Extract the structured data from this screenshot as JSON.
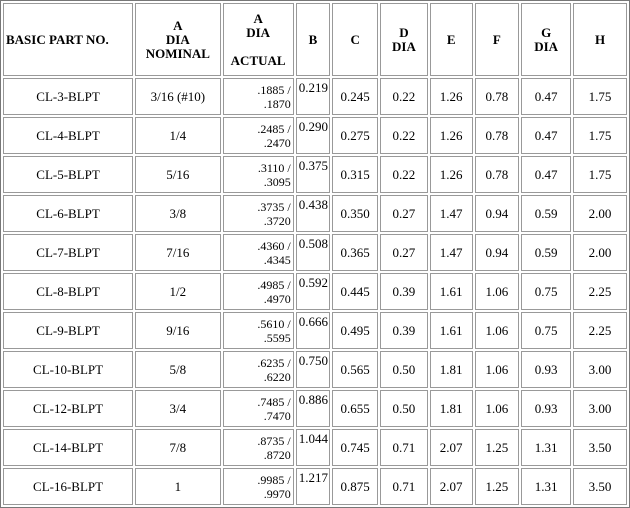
{
  "table": {
    "header": [
      [
        "BASIC PART NO."
      ],
      [
        "A",
        "DIA",
        "NOMINAL"
      ],
      [
        "A",
        "DIA",
        "ACTUAL"
      ],
      [
        "B"
      ],
      [
        "C"
      ],
      [
        "D",
        "DIA"
      ],
      [
        "E"
      ],
      [
        "F"
      ],
      [
        "G",
        "DIA"
      ],
      [
        "H"
      ]
    ],
    "rows": [
      [
        "CL-3-BLPT",
        "3/16 (#10)",
        [
          ".1885 /",
          ".1870"
        ],
        "0.219",
        "0.245",
        "0.22",
        "1.26",
        "0.78",
        "0.47",
        "1.75"
      ],
      [
        "CL-4-BLPT",
        "1/4",
        [
          ".2485 /",
          ".2470"
        ],
        "0.290",
        "0.275",
        "0.22",
        "1.26",
        "0.78",
        "0.47",
        "1.75"
      ],
      [
        "CL-5-BLPT",
        "5/16",
        [
          ".3110 /",
          ".3095"
        ],
        "0.375",
        "0.315",
        "0.22",
        "1.26",
        "0.78",
        "0.47",
        "1.75"
      ],
      [
        "CL-6-BLPT",
        "3/8",
        [
          ".3735 /",
          ".3720"
        ],
        "0.438",
        "0.350",
        "0.27",
        "1.47",
        "0.94",
        "0.59",
        "2.00"
      ],
      [
        "CL-7-BLPT",
        "7/16",
        [
          ".4360 /",
          ".4345"
        ],
        "0.508",
        "0.365",
        "0.27",
        "1.47",
        "0.94",
        "0.59",
        "2.00"
      ],
      [
        "CL-8-BLPT",
        "1/2",
        [
          ".4985 /",
          ".4970"
        ],
        "0.592",
        "0.445",
        "0.39",
        "1.61",
        "1.06",
        "0.75",
        "2.25"
      ],
      [
        "CL-9-BLPT",
        "9/16",
        [
          ".5610 /",
          ".5595"
        ],
        "0.666",
        "0.495",
        "0.39",
        "1.61",
        "1.06",
        "0.75",
        "2.25"
      ],
      [
        "CL-10-BLPT",
        "5/8",
        [
          ".6235 /",
          ".6220"
        ],
        "0.750",
        "0.565",
        "0.50",
        "1.81",
        "1.06",
        "0.93",
        "3.00"
      ],
      [
        "CL-12-BLPT",
        "3/4",
        [
          ".7485 /",
          ".7470"
        ],
        "0.886",
        "0.655",
        "0.50",
        "1.81",
        "1.06",
        "0.93",
        "3.00"
      ],
      [
        "CL-14-BLPT",
        "7/8",
        [
          ".8735 /",
          ".8720"
        ],
        "1.044",
        "0.745",
        "0.71",
        "2.07",
        "1.25",
        "1.31",
        "3.50"
      ],
      [
        "CL-16-BLPT",
        "1",
        [
          ".9985 /",
          ".9970"
        ],
        "1.217",
        "0.875",
        "0.71",
        "2.07",
        "1.25",
        "1.31",
        "3.50"
      ]
    ]
  }
}
